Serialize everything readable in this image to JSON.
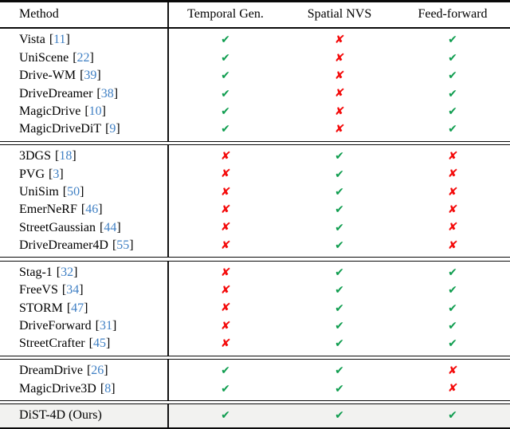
{
  "table": {
    "header": {
      "method_label": "Method",
      "columns": [
        "Temporal Gen.",
        "Spatial NVS",
        "Feed-forward"
      ]
    },
    "punct": {
      "open": "[",
      "close": "]"
    },
    "icons": {
      "check": "✔",
      "cross": "✘"
    },
    "colors": {
      "check": "#0f9d4f",
      "cross": "#f40b0b",
      "ref": "#4080c4",
      "highlight_bg": "#f2f2f0"
    },
    "groups": [
      {
        "highlight": false,
        "rows": [
          {
            "name": "Vista",
            "ref": "11",
            "marks": [
              true,
              false,
              true
            ]
          },
          {
            "name": "UniScene",
            "ref": "22",
            "marks": [
              true,
              false,
              true
            ]
          },
          {
            "name": "Drive-WM",
            "ref": "39",
            "marks": [
              true,
              false,
              true
            ]
          },
          {
            "name": "DriveDreamer",
            "ref": "38",
            "marks": [
              true,
              false,
              true
            ]
          },
          {
            "name": "MagicDrive",
            "ref": "10",
            "marks": [
              true,
              false,
              true
            ]
          },
          {
            "name": "MagicDriveDiT",
            "ref": "9",
            "marks": [
              true,
              false,
              true
            ]
          }
        ]
      },
      {
        "highlight": false,
        "rows": [
          {
            "name": "3DGS",
            "ref": "18",
            "marks": [
              false,
              true,
              false
            ]
          },
          {
            "name": "PVG",
            "ref": "3",
            "marks": [
              false,
              true,
              false
            ]
          },
          {
            "name": "UniSim",
            "ref": "50",
            "marks": [
              false,
              true,
              false
            ]
          },
          {
            "name": "EmerNeRF",
            "ref": "46",
            "marks": [
              false,
              true,
              false
            ]
          },
          {
            "name": "StreetGaussian",
            "ref": "44",
            "marks": [
              false,
              true,
              false
            ]
          },
          {
            "name": "DriveDreamer4D",
            "ref": "55",
            "marks": [
              false,
              true,
              false
            ]
          }
        ]
      },
      {
        "highlight": false,
        "rows": [
          {
            "name": "Stag-1",
            "ref": "32",
            "marks": [
              false,
              true,
              true
            ]
          },
          {
            "name": "FreeVS",
            "ref": "34",
            "marks": [
              false,
              true,
              true
            ]
          },
          {
            "name": "STORM",
            "ref": "47",
            "marks": [
              false,
              true,
              true
            ]
          },
          {
            "name": "DriveForward",
            "ref": "31",
            "marks": [
              false,
              true,
              true
            ]
          },
          {
            "name": "StreetCrafter",
            "ref": "45",
            "marks": [
              false,
              true,
              true
            ]
          }
        ]
      },
      {
        "highlight": false,
        "rows": [
          {
            "name": "DreamDrive",
            "ref": "26",
            "marks": [
              true,
              true,
              false
            ]
          },
          {
            "name": "MagicDrive3D",
            "ref": "8",
            "marks": [
              true,
              true,
              false
            ]
          }
        ]
      },
      {
        "highlight": true,
        "rows": [
          {
            "name": "DiST-4D (Ours)",
            "ref": null,
            "marks": [
              true,
              true,
              true
            ]
          }
        ]
      }
    ]
  }
}
